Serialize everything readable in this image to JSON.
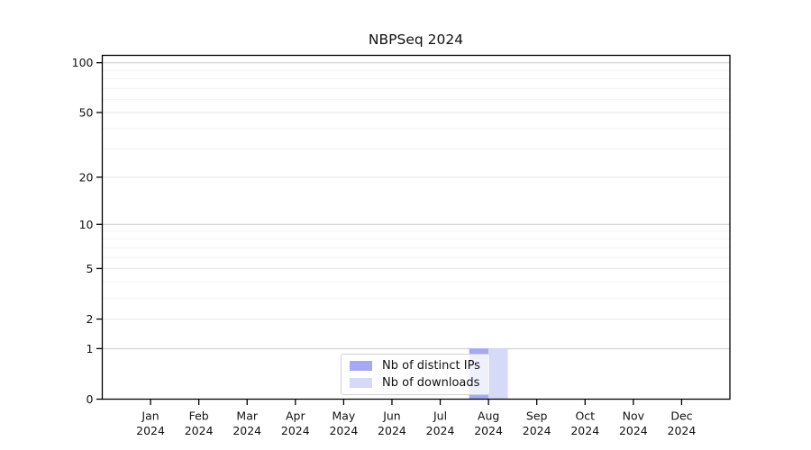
{
  "chart_data": {
    "type": "bar",
    "title": "NBPSeq 2024",
    "categories": [
      "Jan",
      "Feb",
      "Mar",
      "Apr",
      "May",
      "Jun",
      "Jul",
      "Aug",
      "Sep",
      "Oct",
      "Nov",
      "Dec"
    ],
    "category_year": "2024",
    "series": [
      {
        "name": "Nb of distinct IPs",
        "color": "#a5a9f2",
        "values": [
          0,
          0,
          0,
          0,
          0,
          0,
          0,
          1,
          0,
          0,
          0,
          0
        ]
      },
      {
        "name": "Nb of downloads",
        "color": "#d6daf8",
        "values": [
          0,
          0,
          0,
          0,
          0,
          0,
          0,
          1,
          0,
          0,
          0,
          0
        ]
      }
    ],
    "yticks": [
      0,
      1,
      2,
      5,
      10,
      20,
      50,
      100
    ],
    "minor_gridlines": [
      3,
      4,
      6,
      7,
      8,
      9,
      30,
      40,
      60,
      70,
      80,
      90
    ],
    "scale": "log1p",
    "ylim": [
      0,
      115
    ],
    "xlabel": "",
    "ylabel": "",
    "grid": true,
    "legend_position": "lower center",
    "colors": {
      "background": "#ffffff",
      "axis": "#000000",
      "grid_major": "#c9c9c9",
      "grid_sub": "#e7e7e7",
      "grid_minor": "#f2f2f2",
      "legend_border": "#d2d2d2"
    }
  }
}
